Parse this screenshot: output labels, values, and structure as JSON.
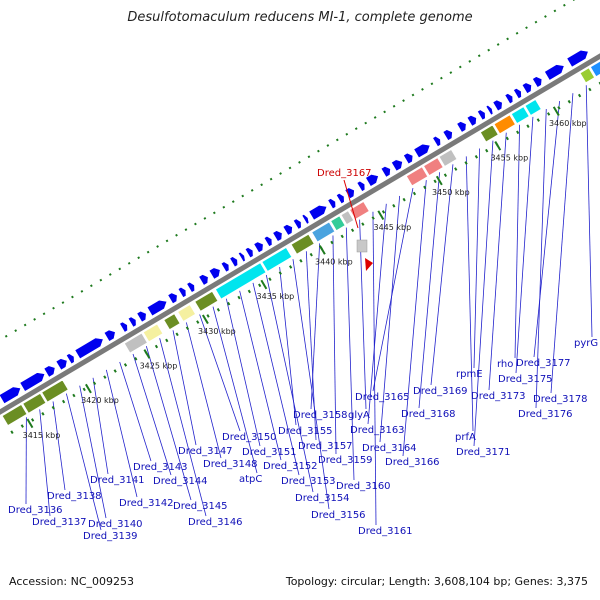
{
  "title": "Desulfotomaculum reducens MI-1, complete genome",
  "footer": {
    "accession": "Accession: NC_009253",
    "summary": "Topology: circular; Length: 3,608,104 bp; Genes: 3,375"
  },
  "colors": {
    "forward_cds": "#0000ee",
    "backbone": "#7a7a7a",
    "tick": "#1e7a1e",
    "label": "#1010b8",
    "highlight": "#dd0000",
    "reverse_green": "#6b8e23",
    "reverse_cyan": "#00e5ee",
    "reverse_grey": "#c0c0c0",
    "reverse_pink": "#f08080",
    "reverse_yellow": "#f5f0a0"
  },
  "scale_labels": [
    "3415 kbp",
    "3420 kbp",
    "3425 kbp",
    "3430 kbp",
    "3435 kbp",
    "3440 kbp",
    "3445 kbp",
    "3450 kbp",
    "3455 kbp",
    "3460 kbp"
  ],
  "highlight_label": "Dred_3167",
  "gene_labels": [
    "Dred_3136",
    "Dred_3137",
    "Dred_3138",
    "Dred_3139",
    "Dred_3140",
    "Dred_3141",
    "Dred_3142",
    "Dred_3143",
    "Dred_3144",
    "Dred_3145",
    "Dred_3146",
    "Dred_3147",
    "Dred_3148",
    "Dred_3150",
    "atpC",
    "Dred_3151",
    "Dred_3152",
    "Dred_3153",
    "Dred_3154",
    "Dred_3155",
    "Dred_3156",
    "Dred_3157",
    "Dred_3158",
    "Dred_3159",
    "Dred_3160",
    "glyA",
    "Dred_3161",
    "Dred_3163",
    "Dred_3164",
    "Dred_3165",
    "Dred_3166",
    "Dred_3168",
    "Dred_3169",
    "prfA",
    "rpmE",
    "Dred_3171",
    "Dred_3173",
    "rho",
    "Dred_3175",
    "Dred_3176",
    "Dred_3177",
    "Dred_3178",
    "pyrG"
  ]
}
